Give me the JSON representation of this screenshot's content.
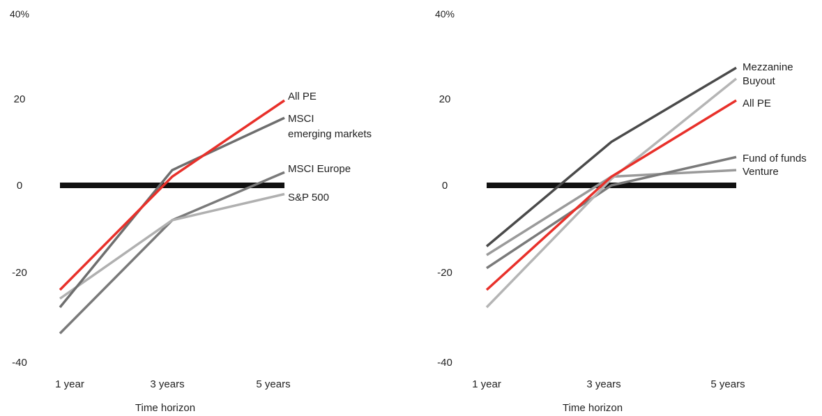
{
  "chart_data": [
    {
      "type": "line",
      "xlabel": "Time horizon",
      "ylabel": "",
      "ylim": [
        -40,
        40
      ],
      "y_ticks": [
        "40%",
        "20",
        "0",
        "-20",
        "-40"
      ],
      "x_ticks": [
        "1 year",
        "3 years",
        "5 years"
      ],
      "categories": [
        "1 year",
        "3 years",
        "5 years"
      ],
      "zero_line": true,
      "grid": false,
      "legend": "labels at right end of each line",
      "series": [
        {
          "name": "MSCI Europe",
          "values": [
            -34,
            -8,
            3
          ],
          "color": "#7a7a7a"
        },
        {
          "name": "S&P 500",
          "values": [
            -26,
            -8,
            -2
          ],
          "color": "#b0b0b0"
        },
        {
          "name": "MSCI emerging markets",
          "values": [
            -28,
            3.5,
            15.5
          ],
          "color": "#6e6e6e"
        },
        {
          "name": "All PE",
          "values": [
            -24,
            2,
            19.5
          ],
          "color": "#e8302a"
        }
      ],
      "label_order": [
        "All PE",
        "MSCI emerging markets",
        "MSCI Europe",
        "S&P 500"
      ]
    },
    {
      "type": "line",
      "xlabel": "Time horizon",
      "ylabel": "",
      "ylim": [
        -40,
        40
      ],
      "y_ticks": [
        "40%",
        "20",
        "0",
        "-20",
        "-40"
      ],
      "x_ticks": [
        "1 year",
        "3 years",
        "5 years"
      ],
      "categories": [
        "1 year",
        "3 years",
        "5 years"
      ],
      "zero_line": true,
      "grid": false,
      "legend": "labels at right end of each line",
      "series": [
        {
          "name": "Venture",
          "values": [
            -16,
            2,
            3.5
          ],
          "color": "#9a9a9a"
        },
        {
          "name": "Fund of funds",
          "values": [
            -19,
            0,
            6.5
          ],
          "color": "#7a7a7a"
        },
        {
          "name": "Buyout",
          "values": [
            -28,
            1.5,
            24.5
          ],
          "color": "#b5b5b5"
        },
        {
          "name": "Mezzanine",
          "values": [
            -14,
            10,
            27
          ],
          "color": "#4a4a4a"
        },
        {
          "name": "All PE",
          "values": [
            -24,
            2,
            19.5
          ],
          "color": "#e8302a"
        }
      ],
      "label_order": [
        "Mezzanine",
        "Buyout",
        "All PE",
        "Fund of funds",
        "Venture"
      ]
    }
  ]
}
